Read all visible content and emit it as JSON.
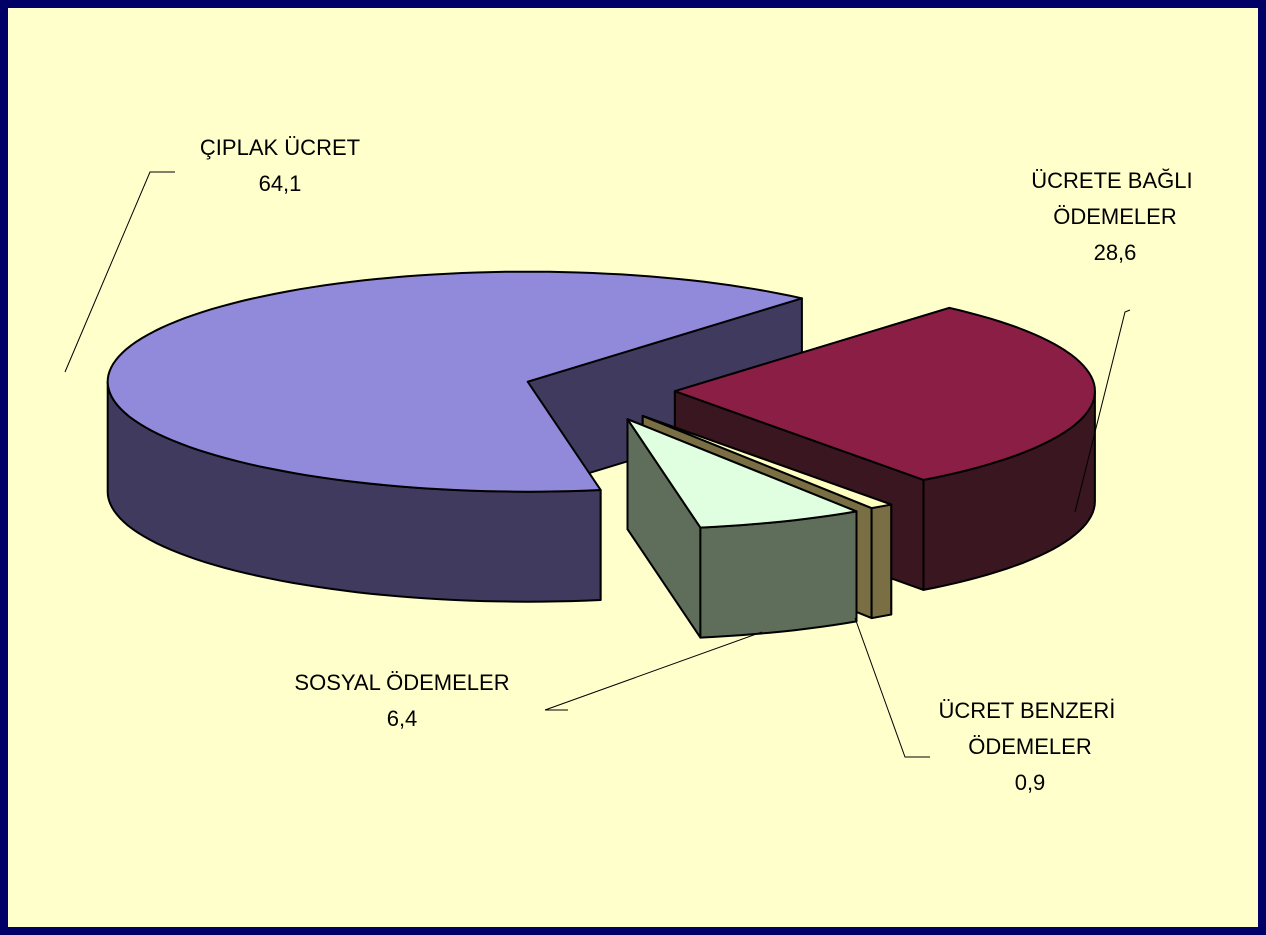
{
  "chart_data": {
    "type": "pie",
    "categories": [
      "ÇIPLAK ÜCRET",
      "ÜCRETE BAĞLI ÖDEMELER",
      "ÜCRET BENZERİ ÖDEMELER",
      "SOSYAL ÖDEMELER"
    ],
    "values": [
      64.1,
      28.6,
      0.9,
      6.4
    ],
    "value_labels": [
      "64,1",
      "28,6",
      "0,9",
      "6,4"
    ],
    "colors": [
      "#9189d9",
      "#8b1e45",
      "#ffffc2",
      "#e0ffe0"
    ],
    "side_colors": [
      "#403a5e",
      "#3a1620",
      "#7a6e45",
      "#5f6e5b"
    ]
  }
}
